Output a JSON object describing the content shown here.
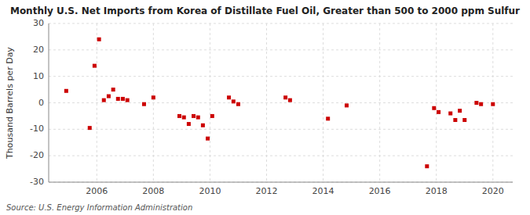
{
  "chart_data": {
    "type": "scatter",
    "title": "Monthly U.S. Net Imports from Korea of Distillate Fuel Oil, Greater than 500 to 2000 ppm Sulfur",
    "ylabel": "Thousand Barrels per Day",
    "source": "Source: U.S. Energy Information Administration",
    "color": "#cc0000",
    "marker": "square",
    "grid": true,
    "xlim": [
      2004.3,
      2020.7
    ],
    "ylim": [
      -30,
      30
    ],
    "xticks": [
      2006,
      2008,
      2010,
      2012,
      2014,
      2016,
      2018,
      2020
    ],
    "yticks": [
      -30,
      -20,
      -10,
      0,
      10,
      20,
      30
    ],
    "x": [
      2004.92,
      2005.75,
      2005.92,
      2006.08,
      2006.25,
      2006.42,
      2006.58,
      2006.75,
      2006.92,
      2007.08,
      2007.67,
      2008.0,
      2008.92,
      2009.08,
      2009.25,
      2009.42,
      2009.58,
      2009.75,
      2009.92,
      2010.08,
      2010.67,
      2010.83,
      2011.0,
      2012.67,
      2012.83,
      2014.17,
      2014.83,
      2017.67,
      2017.92,
      2018.08,
      2018.5,
      2018.67,
      2018.83,
      2019.0,
      2019.42,
      2019.58,
      2020.0
    ],
    "values": [
      4.5,
      -9.5,
      14.0,
      24.0,
      1.0,
      2.5,
      5.0,
      1.5,
      1.5,
      1.0,
      -0.5,
      2.0,
      -5.0,
      -5.5,
      -8.0,
      -5.0,
      -5.5,
      -8.5,
      -13.5,
      -5.0,
      2.0,
      0.5,
      -0.5,
      2.0,
      1.0,
      -6.0,
      -1.0,
      -24.0,
      -2.0,
      -3.5,
      -4.0,
      -6.5,
      -3.0,
      -6.5,
      0.0,
      -0.5,
      -0.5
    ]
  }
}
